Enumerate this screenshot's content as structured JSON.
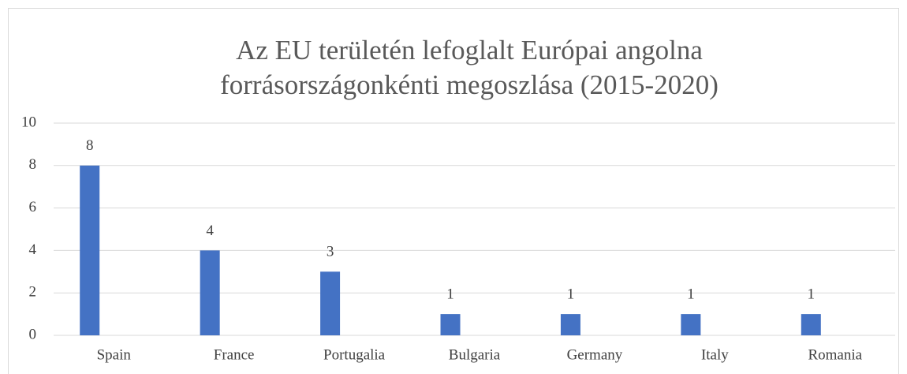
{
  "chart_data": {
    "type": "bar",
    "title": "Az EU területén lefoglalt Európai angolna forrásországonkénti megoszlása (2015-2020)",
    "categories": [
      "Spain",
      "France",
      "Portugalia",
      "Bulgaria",
      "Germany",
      "Italy",
      "Romania"
    ],
    "values": [
      8,
      4,
      3,
      1,
      1,
      1,
      1
    ],
    "color": "#4472c4",
    "ylim": [
      0,
      10
    ],
    "yticks": [
      0,
      2,
      4,
      6,
      8,
      10
    ],
    "grid": true
  }
}
